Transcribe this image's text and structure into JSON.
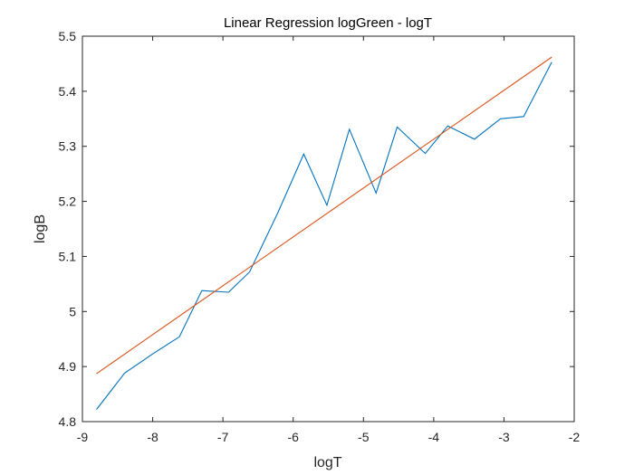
{
  "chart_data": {
    "type": "line",
    "title": "Linear Regression logGreen - logT",
    "xlabel": "logT",
    "ylabel": "logB",
    "xlim": [
      -9,
      -2
    ],
    "ylim": [
      4.8,
      5.5
    ],
    "x_ticks": [
      "-9",
      "-8",
      "-7",
      "-6",
      "-5",
      "-4",
      "-3",
      "-2"
    ],
    "y_ticks": [
      "4.8",
      "4.9",
      "5",
      "5.1",
      "5.2",
      "5.3",
      "5.4",
      "5.5"
    ],
    "grid": false,
    "legend": "none",
    "series": [
      {
        "color": "#0072BD",
        "x": [
          -8.8,
          -8.4,
          -8.0,
          -7.62,
          -7.3,
          -6.92,
          -6.62,
          -6.22,
          -5.85,
          -5.52,
          -5.2,
          -4.82,
          -4.52,
          -4.12,
          -3.8,
          -3.42,
          -3.05,
          -2.72,
          -2.32
        ],
        "y": [
          4.822,
          4.888,
          4.923,
          4.954,
          5.038,
          5.035,
          5.072,
          5.179,
          5.286,
          5.193,
          5.331,
          5.215,
          5.335,
          5.287,
          5.337,
          5.313,
          5.35,
          5.354,
          5.453
        ]
      },
      {
        "color": "#D95319",
        "x": [
          -8.8,
          -2.32
        ],
        "y": [
          4.887,
          5.462
        ]
      }
    ]
  }
}
